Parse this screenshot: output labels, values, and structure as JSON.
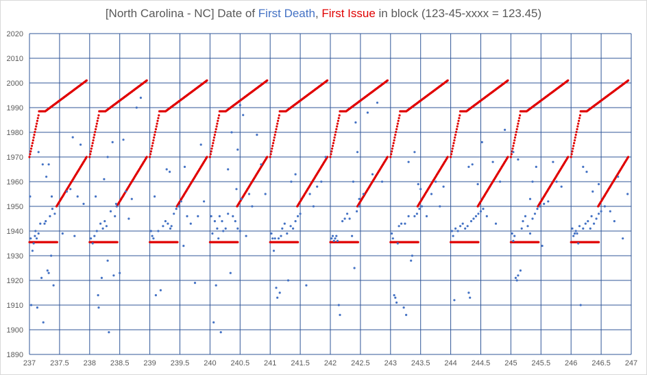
{
  "chart_data": {
    "type": "scatter",
    "title": {
      "part1": "[North Carolina - NC] Date of ",
      "part2": "First Death",
      "part3": ", ",
      "part4": "First Issue",
      "part5": " in block (123-45-xxxx = 123.45)"
    },
    "xlim": [
      237,
      247
    ],
    "ylim": [
      1890,
      2020
    ],
    "x_ticks": [
      "237",
      "237.5",
      "238",
      "238.5",
      "239",
      "239.5",
      "240",
      "240.5",
      "241",
      "241.5",
      "242",
      "242.5",
      "243",
      "243.5",
      "244",
      "244.5",
      "245",
      "245.5",
      "246",
      "246.5",
      "247"
    ],
    "y_ticks": [
      "1890",
      "1900",
      "1910",
      "1920",
      "1930",
      "1940",
      "1950",
      "1960",
      "1970",
      "1980",
      "1990",
      "2000",
      "2010",
      "2020"
    ],
    "grid": true,
    "series": [
      {
        "name": "First Death",
        "color": "#4472c4",
        "points": [
          [
            237.01,
            1954
          ],
          [
            237.02,
            1937
          ],
          [
            237.03,
            1910
          ],
          [
            237.05,
            1932
          ],
          [
            237.07,
            1935
          ],
          [
            237.09,
            1938
          ],
          [
            237.1,
            1940
          ],
          [
            237.12,
            1937
          ],
          [
            237.13,
            1909
          ],
          [
            237.15,
            1939
          ],
          [
            237.18,
            1943
          ],
          [
            237.2,
            1921
          ],
          [
            237.23,
            1903
          ],
          [
            237.25,
            1943
          ],
          [
            237.27,
            1944
          ],
          [
            237.3,
            1924
          ],
          [
            237.32,
            1923
          ],
          [
            237.34,
            1946
          ],
          [
            237.36,
            1930
          ],
          [
            237.38,
            1949
          ],
          [
            237.4,
            1918
          ],
          [
            237.42,
            1947
          ],
          [
            237.22,
            1967
          ],
          [
            237.28,
            1962
          ],
          [
            237.32,
            1967
          ],
          [
            237.15,
            1972
          ],
          [
            237.37,
            1954
          ],
          [
            237.55,
            1939
          ],
          [
            237.62,
            1956
          ],
          [
            237.68,
            1957
          ],
          [
            237.72,
            1978
          ],
          [
            237.75,
            1938
          ],
          [
            237.8,
            1954
          ],
          [
            237.85,
            1975
          ],
          [
            237.9,
            1951
          ],
          [
            238.02,
            1937
          ],
          [
            238.05,
            1935
          ],
          [
            238.08,
            1938
          ],
          [
            238.1,
            1954
          ],
          [
            238.12,
            1940
          ],
          [
            238.14,
            1914
          ],
          [
            238.15,
            1909
          ],
          [
            238.18,
            1943
          ],
          [
            238.2,
            1921
          ],
          [
            238.22,
            1941
          ],
          [
            238.25,
            1944
          ],
          [
            238.28,
            1942
          ],
          [
            238.3,
            1928
          ],
          [
            238.32,
            1899
          ],
          [
            238.35,
            1948
          ],
          [
            238.4,
            1922
          ],
          [
            238.42,
            1946
          ],
          [
            238.45,
            1950
          ],
          [
            238.5,
            1923
          ],
          [
            238.3,
            1970
          ],
          [
            238.24,
            1961
          ],
          [
            238.38,
            1976
          ],
          [
            238.44,
            1951
          ],
          [
            238.56,
            1977
          ],
          [
            238.6,
            1956
          ],
          [
            238.65,
            1945
          ],
          [
            238.7,
            1953
          ],
          [
            238.78,
            1990
          ],
          [
            238.85,
            1994
          ],
          [
            239.02,
            1940
          ],
          [
            239.04,
            1938
          ],
          [
            239.06,
            1937
          ],
          [
            239.08,
            1954
          ],
          [
            239.1,
            1914
          ],
          [
            239.14,
            1940
          ],
          [
            239.18,
            1916
          ],
          [
            239.22,
            1942
          ],
          [
            239.26,
            1944
          ],
          [
            239.3,
            1943
          ],
          [
            239.34,
            1941
          ],
          [
            239.36,
            1942
          ],
          [
            239.4,
            1947
          ],
          [
            239.44,
            1949
          ],
          [
            239.48,
            1950
          ],
          [
            239.52,
            1952
          ],
          [
            239.56,
            1934
          ],
          [
            239.28,
            1965
          ],
          [
            239.33,
            1964
          ],
          [
            239.58,
            1966
          ],
          [
            239.62,
            1946
          ],
          [
            239.68,
            1943
          ],
          [
            239.75,
            1919
          ],
          [
            239.8,
            1946
          ],
          [
            239.85,
            1975
          ],
          [
            239.9,
            1952
          ],
          [
            240.02,
            1946
          ],
          [
            240.04,
            1939
          ],
          [
            240.06,
            1903
          ],
          [
            240.08,
            1944
          ],
          [
            240.1,
            1918
          ],
          [
            240.12,
            1941
          ],
          [
            240.14,
            1937
          ],
          [
            240.16,
            1946
          ],
          [
            240.18,
            1899
          ],
          [
            240.2,
            1944
          ],
          [
            240.22,
            1940
          ],
          [
            240.26,
            1941
          ],
          [
            240.3,
            1947
          ],
          [
            240.34,
            1923
          ],
          [
            240.38,
            1946
          ],
          [
            240.42,
            1944
          ],
          [
            240.46,
            1941
          ],
          [
            240.5,
            1940
          ],
          [
            240.36,
            1980
          ],
          [
            240.3,
            1965
          ],
          [
            240.44,
            1957
          ],
          [
            240.46,
            1973
          ],
          [
            240.5,
            1991
          ],
          [
            240.52,
            1953
          ],
          [
            240.55,
            1987
          ],
          [
            240.6,
            1938
          ],
          [
            240.65,
            1955
          ],
          [
            240.7,
            1950
          ],
          [
            240.78,
            1979
          ],
          [
            240.85,
            1967
          ],
          [
            240.92,
            1955
          ],
          [
            241.02,
            1939
          ],
          [
            241.04,
            1937
          ],
          [
            241.06,
            1932
          ],
          [
            241.08,
            1937
          ],
          [
            241.1,
            1917
          ],
          [
            241.12,
            1913
          ],
          [
            241.14,
            1937
          ],
          [
            241.16,
            1915
          ],
          [
            241.18,
            1938
          ],
          [
            241.2,
            1941
          ],
          [
            241.24,
            1943
          ],
          [
            241.28,
            1939
          ],
          [
            241.3,
            1920
          ],
          [
            241.34,
            1942
          ],
          [
            241.38,
            1941
          ],
          [
            241.42,
            1944
          ],
          [
            241.46,
            1946
          ],
          [
            241.5,
            1947
          ],
          [
            241.35,
            1960
          ],
          [
            241.42,
            1963
          ],
          [
            241.6,
            1918
          ],
          [
            241.66,
            1955
          ],
          [
            241.72,
            1950
          ],
          [
            241.78,
            1958
          ],
          [
            241.85,
            1960
          ],
          [
            241.92,
            1970
          ],
          [
            242.02,
            1937
          ],
          [
            242.04,
            1938
          ],
          [
            242.06,
            1936
          ],
          [
            242.08,
            1937
          ],
          [
            242.1,
            1938
          ],
          [
            242.12,
            1936
          ],
          [
            242.14,
            1910
          ],
          [
            242.16,
            1906
          ],
          [
            242.2,
            1944
          ],
          [
            242.24,
            1945
          ],
          [
            242.28,
            1947
          ],
          [
            242.32,
            1945
          ],
          [
            242.36,
            1938
          ],
          [
            242.4,
            1925
          ],
          [
            242.44,
            1948
          ],
          [
            242.48,
            1950
          ],
          [
            242.38,
            1960
          ],
          [
            242.45,
            1972
          ],
          [
            242.42,
            1984
          ],
          [
            242.48,
            1953
          ],
          [
            242.55,
            1955
          ],
          [
            242.62,
            1988
          ],
          [
            242.7,
            1963
          ],
          [
            242.78,
            1992
          ],
          [
            242.86,
            1960
          ],
          [
            243.02,
            1939
          ],
          [
            243.04,
            1937
          ],
          [
            243.06,
            1914
          ],
          [
            243.08,
            1913
          ],
          [
            243.1,
            1911
          ],
          [
            243.12,
            1935
          ],
          [
            243.14,
            1942
          ],
          [
            243.18,
            1943
          ],
          [
            243.22,
            1909
          ],
          [
            243.24,
            1943
          ],
          [
            243.26,
            1906
          ],
          [
            243.3,
            1946
          ],
          [
            243.34,
            1928
          ],
          [
            243.36,
            1930
          ],
          [
            243.4,
            1946
          ],
          [
            243.44,
            1947
          ],
          [
            243.48,
            1949
          ],
          [
            243.52,
            1950
          ],
          [
            243.4,
            1972
          ],
          [
            243.46,
            1959
          ],
          [
            243.3,
            1968
          ],
          [
            243.5,
            1957
          ],
          [
            243.6,
            1946
          ],
          [
            243.68,
            1955
          ],
          [
            243.75,
            1960
          ],
          [
            243.82,
            1950
          ],
          [
            243.88,
            1958
          ],
          [
            244.02,
            1940
          ],
          [
            244.04,
            1938
          ],
          [
            244.06,
            1912
          ],
          [
            244.08,
            1941
          ],
          [
            244.12,
            1940
          ],
          [
            244.16,
            1942
          ],
          [
            244.2,
            1943
          ],
          [
            244.24,
            1941
          ],
          [
            244.28,
            1942
          ],
          [
            244.3,
            1915
          ],
          [
            244.32,
            1913
          ],
          [
            244.34,
            1944
          ],
          [
            244.38,
            1945
          ],
          [
            244.42,
            1946
          ],
          [
            244.46,
            1947
          ],
          [
            244.5,
            1948
          ],
          [
            244.54,
            1949
          ],
          [
            244.3,
            1966
          ],
          [
            244.36,
            1967
          ],
          [
            244.45,
            1959
          ],
          [
            244.52,
            1976
          ],
          [
            244.6,
            1946
          ],
          [
            244.7,
            1968
          ],
          [
            244.75,
            1943
          ],
          [
            244.82,
            1960
          ],
          [
            244.9,
            1981
          ],
          [
            245.02,
            1939
          ],
          [
            245.04,
            1936
          ],
          [
            245.06,
            1938
          ],
          [
            245.08,
            1921
          ],
          [
            245.1,
            1920
          ],
          [
            245.12,
            1922
          ],
          [
            245.16,
            1924
          ],
          [
            245.18,
            1941
          ],
          [
            245.2,
            1944
          ],
          [
            245.24,
            1946
          ],
          [
            245.28,
            1942
          ],
          [
            245.32,
            1939
          ],
          [
            245.36,
            1945
          ],
          [
            245.4,
            1947
          ],
          [
            245.44,
            1949
          ],
          [
            245.48,
            1950
          ],
          [
            245.52,
            1934
          ],
          [
            245.04,
            1972
          ],
          [
            245.12,
            1969
          ],
          [
            245.36,
            1960
          ],
          [
            245.42,
            1966
          ],
          [
            245.32,
            1953
          ],
          [
            245.55,
            1951
          ],
          [
            245.62,
            1952
          ],
          [
            245.7,
            1968
          ],
          [
            245.76,
            1960
          ],
          [
            245.84,
            1958
          ],
          [
            246.02,
            1941
          ],
          [
            246.04,
            1938
          ],
          [
            246.06,
            1939
          ],
          [
            246.08,
            1940
          ],
          [
            246.1,
            1939
          ],
          [
            246.12,
            1935
          ],
          [
            246.14,
            1942
          ],
          [
            246.16,
            1910
          ],
          [
            246.2,
            1941
          ],
          [
            246.24,
            1943
          ],
          [
            246.28,
            1944
          ],
          [
            246.32,
            1941
          ],
          [
            246.34,
            1946
          ],
          [
            246.38,
            1943
          ],
          [
            246.42,
            1945
          ],
          [
            246.46,
            1947
          ],
          [
            246.5,
            1948
          ],
          [
            246.2,
            1966
          ],
          [
            246.26,
            1964
          ],
          [
            246.36,
            1956
          ],
          [
            246.46,
            1959
          ],
          [
            246.56,
            1950
          ],
          [
            246.65,
            1948
          ],
          [
            246.72,
            1944
          ],
          [
            246.78,
            1962
          ],
          [
            246.86,
            1937
          ],
          [
            246.94,
            1955
          ]
        ]
      },
      {
        "name": "First Issue",
        "color": "#e00000",
        "points": []
      }
    ]
  }
}
